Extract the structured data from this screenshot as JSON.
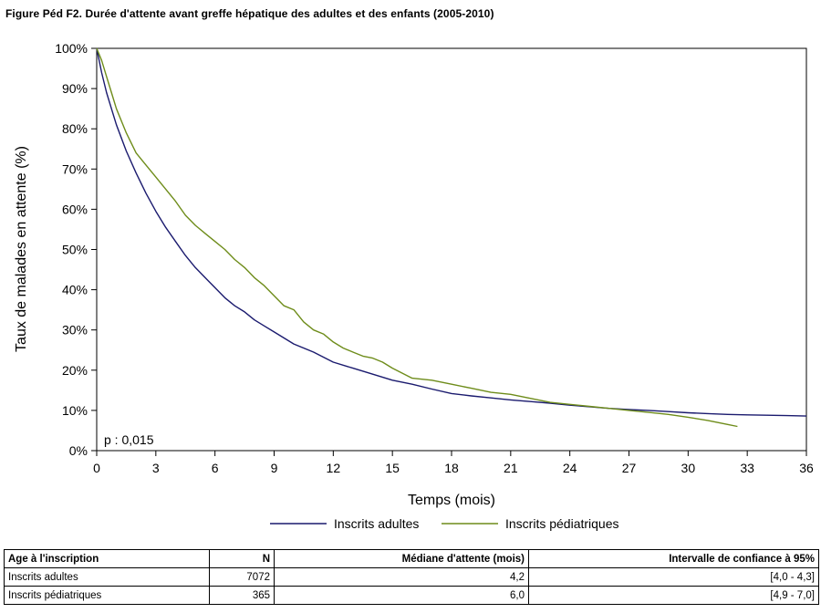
{
  "figure": {
    "title": "Figure Péd F2. Durée d'attente avant greffe hépatique des adultes et des enfants (2005-2010)"
  },
  "chart_data": {
    "type": "line",
    "title": "",
    "xlabel": "Temps (mois)",
    "ylabel": "Taux de malades en attente (%)",
    "xlim": [
      0,
      36
    ],
    "ylim": [
      0,
      100
    ],
    "xticks": [
      0,
      3,
      6,
      9,
      12,
      15,
      18,
      21,
      24,
      27,
      30,
      33,
      36
    ],
    "yticks": [
      0,
      10,
      20,
      30,
      40,
      50,
      60,
      70,
      80,
      90,
      100
    ],
    "ytick_suffix": "%",
    "grid": false,
    "legend_position": "bottom",
    "annotation": "p : 0,015",
    "series": [
      {
        "name": "Inscrits adultes",
        "color": "#1a1a6e",
        "x": [
          0,
          0.25,
          0.5,
          0.75,
          1,
          1.5,
          2,
          2.5,
          3,
          3.5,
          4,
          4.5,
          5,
          5.5,
          6,
          6.5,
          7,
          7.5,
          8,
          8.5,
          9,
          9.5,
          10,
          11,
          12,
          13,
          14,
          15,
          16,
          17,
          18,
          19,
          20,
          21,
          22,
          23,
          24,
          25,
          26,
          27,
          28,
          29,
          30,
          31,
          32,
          33,
          34,
          35,
          36
        ],
        "y": [
          100,
          94,
          89,
          85,
          81,
          74.5,
          69,
          64,
          59.5,
          55.5,
          52,
          48.5,
          45.5,
          43,
          40.5,
          38,
          36,
          34.5,
          32.5,
          31,
          29.5,
          28,
          26.5,
          24.5,
          22,
          20.5,
          19,
          17.5,
          16.5,
          15.3,
          14.2,
          13.6,
          13.1,
          12.6,
          12.2,
          11.8,
          11.3,
          10.9,
          10.5,
          10.2,
          10.0,
          9.7,
          9.4,
          9.2,
          9.0,
          8.9,
          8.8,
          8.7,
          8.6
        ]
      },
      {
        "name": "Inscrits pédiatriques",
        "color": "#6e8c1a",
        "x": [
          0,
          0.25,
          0.5,
          0.75,
          1,
          1.5,
          2,
          2.5,
          3,
          3.5,
          4,
          4.5,
          5,
          5.5,
          6,
          6.5,
          7,
          7.5,
          8,
          8.5,
          9,
          9.5,
          10,
          10.5,
          11,
          11.5,
          12,
          12.5,
          13,
          13.5,
          14,
          14.5,
          15,
          16,
          17,
          18,
          19,
          20,
          21,
          22,
          23,
          24,
          25,
          26,
          27,
          28,
          29,
          30,
          31,
          32,
          32.5
        ],
        "y": [
          100,
          97,
          93,
          89,
          85,
          79,
          74,
          71,
          68,
          65,
          62,
          58.5,
          56,
          54,
          52,
          50,
          47.5,
          45.5,
          43,
          41,
          38.5,
          36,
          35,
          32,
          30,
          29,
          27,
          25.5,
          24.5,
          23.5,
          23,
          22,
          20.5,
          18,
          17.5,
          16.5,
          15.5,
          14.5,
          14,
          13,
          12,
          11.5,
          11,
          10.5,
          10,
          9.5,
          9,
          8.3,
          7.5,
          6.5,
          6
        ]
      }
    ]
  },
  "table": {
    "headers": [
      "Age à l'inscription",
      "N",
      "Médiane d'attente (mois)",
      "Intervalle de confiance à 95%"
    ],
    "rows": [
      [
        "Inscrits adultes",
        "7072",
        "4,2",
        "[4,0 - 4,3]"
      ],
      [
        "Inscrits pédiatriques",
        "365",
        "6,0",
        "[4,9 - 7,0]"
      ]
    ]
  }
}
